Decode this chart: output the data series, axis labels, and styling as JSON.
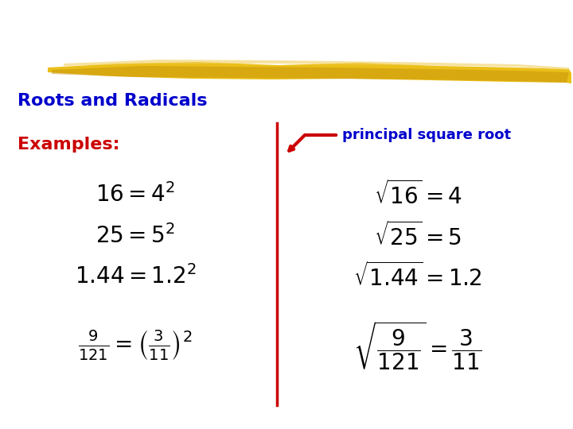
{
  "title": "Roots and Radicals",
  "title_color": "#0000CC",
  "examples_label": "Examples:",
  "examples_color": "#CC0000",
  "bg_color": "#FFFFFF",
  "highlight_color": "#D4A017",
  "divider_color": "#CC0000",
  "arrow_color": "#CC0000",
  "label_color": "#0000CC",
  "left_equations": [
    "16 = 4^{2}",
    "25 = 5^{2}",
    "1.44 = 1.2^{2}",
    "\\frac{9}{121} = \\left(\\frac{3}{11}\\right)^{2}"
  ],
  "right_equations": [
    "\\sqrt{16} = 4",
    "\\sqrt{25} = 5",
    "\\sqrt{1.44} = 1.2",
    "\\sqrt{\\dfrac{9}{121}} = \\dfrac{3}{11}"
  ],
  "font_size_equations": 20,
  "font_size_title": 16,
  "font_size_examples": 16,
  "font_size_label": 13
}
